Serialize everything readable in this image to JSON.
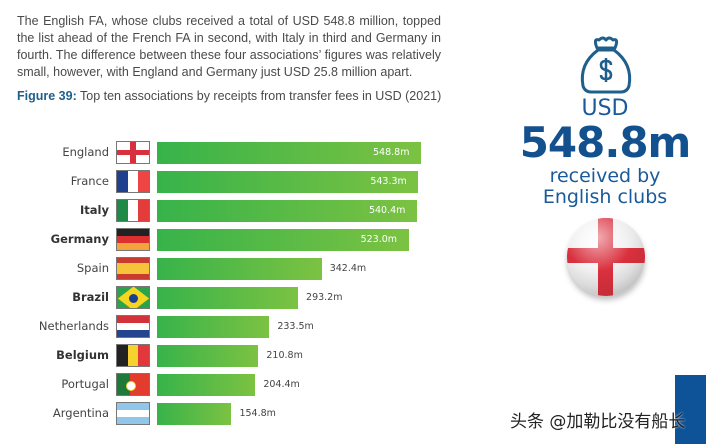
{
  "intro_text": "The English FA, whose clubs received a total of USD 548.8 million, topped the list ahead of the French FA in second, with Italy in third and Germany in fourth. The difference between these four associations’ figures was relatively small, however, with England and Germany just USD 25.8 million apart.",
  "figure": {
    "number": "Figure 39:",
    "caption": "Top ten associations by receipts from transfer fees in USD (2021)"
  },
  "chart_data": {
    "type": "bar",
    "orientation": "horizontal",
    "title": "Top ten associations by receipts from transfer fees in USD (2021)",
    "categories": [
      "England",
      "France",
      "Italy",
      "Germany",
      "Spain",
      "Brazil",
      "Netherlands",
      "Belgium",
      "Portugal",
      "Argentina"
    ],
    "values": [
      548.8,
      543.3,
      540.4,
      523.0,
      342.4,
      293.2,
      233.5,
      210.8,
      204.4,
      154.8
    ],
    "value_labels": [
      "548.8m",
      "543.3m",
      "540.4m",
      "523.0m",
      "342.4m",
      "293.2m",
      "233.5m",
      "210.8m",
      "204.4m",
      "154.8m"
    ],
    "bold_categories": [
      "Italy",
      "Germany",
      "Brazil",
      "Belgium"
    ],
    "bar_color": [
      "#37b34a",
      "#7cc242"
    ],
    "xlim": [
      0,
      548.8
    ],
    "grid": false
  },
  "highlight": {
    "icon": "money-bag-dollar-icon",
    "currency": "USD",
    "amount": "548.8m",
    "line1": "received by",
    "line2": "English clubs",
    "accent": "#13508e"
  },
  "watermark": "头条 @加勒比没有船长"
}
